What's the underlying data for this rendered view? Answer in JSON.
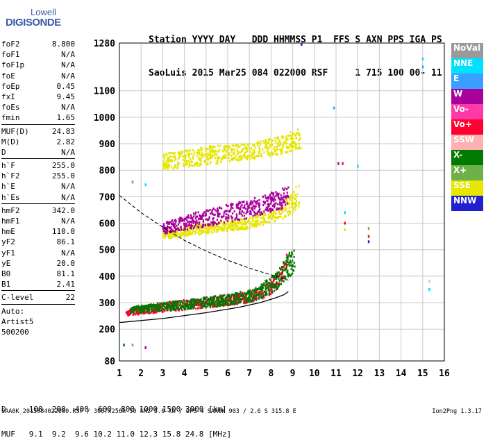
{
  "logo": {
    "line1": "Lowell",
    "line2": "DIGISONDE"
  },
  "header": {
    "row1": "Station YYYY DAY   DDD HHMMSS P1  FFS S AXN PPS IGA PS",
    "row2": "SaoLuis 2015 Mar25 084 022000 RSF     1 715 100 00- 11"
  },
  "params": [
    {
      "k": "foF2",
      "v": "8.800"
    },
    {
      "k": "foF1",
      "v": "N/A"
    },
    {
      "k": "foF1p",
      "v": "N/A"
    },
    {
      "k": "foE",
      "v": "N/A"
    },
    {
      "k": "foEp",
      "v": "0.45"
    },
    {
      "k": "fxI",
      "v": "9.45"
    },
    {
      "k": "foEs",
      "v": "N/A"
    },
    {
      "k": "fmin",
      "v": "1.65"
    },
    {
      "k": "MUF(D)",
      "v": "24.83",
      "sep": true
    },
    {
      "k": "M(D)",
      "v": "2.82"
    },
    {
      "k": "D",
      "v": "N/A"
    },
    {
      "k": "h`F",
      "v": "255.0",
      "sep": true
    },
    {
      "k": "h`F2",
      "v": "255.0"
    },
    {
      "k": "h`E",
      "v": "N/A"
    },
    {
      "k": "h`Es",
      "v": "N/A"
    },
    {
      "k": "hmF2",
      "v": "342.0",
      "sep": true
    },
    {
      "k": "hmF1",
      "v": "N/A"
    },
    {
      "k": "hmE",
      "v": "110.0"
    },
    {
      "k": "yF2",
      "v": "86.1"
    },
    {
      "k": "yF1",
      "v": "N/A"
    },
    {
      "k": "yE",
      "v": "20.0"
    },
    {
      "k": "B0",
      "v": "81.1"
    },
    {
      "k": "B1",
      "v": "2.41"
    },
    {
      "k": "C-level",
      "v": "22",
      "sep": true
    },
    {
      "k": "Auto:",
      "v": "",
      "sep": true
    },
    {
      "k": "Artist5",
      "v": ""
    },
    {
      "k": "500200",
      "v": ""
    }
  ],
  "legend": [
    {
      "label": "NoVal",
      "color": "#9a9a9a"
    },
    {
      "label": "NNE",
      "color": "#00e0ff"
    },
    {
      "label": "E",
      "color": "#3aa0ff"
    },
    {
      "label": "W",
      "color": "#a8009a"
    },
    {
      "label": "Vo-",
      "color": "#ff3aa8"
    },
    {
      "label": "Vo+",
      "color": "#ff0030"
    },
    {
      "label": "SSW",
      "color": "#ffb0b0"
    },
    {
      "label": "X-",
      "color": "#007a00"
    },
    {
      "label": "X+",
      "color": "#6fb04a"
    },
    {
      "label": "SSE",
      "color": "#e6e600"
    },
    {
      "label": "NNW",
      "color": "#2020d0"
    }
  ],
  "bottom": {
    "row1": "D     100  200  400  600  800 1000 1500 3000 [km]",
    "row2": "MUF   9.1  9.2  9.6 10.2 11.0 12.3 15.8 24.8 [MHz]"
  },
  "footer": {
    "left": "SAA0K_2015084022000.RSF / 300fx256h 50 kHz 5.0 km / DPS-4 SAA0K 903 / 2.6 S 315.8 E",
    "right": "Ion2Png 1.3.17"
  },
  "chart_data": {
    "type": "scatter",
    "xlim": [
      1,
      16
    ],
    "ylim": [
      80,
      1280
    ],
    "xticks": [
      "1",
      "2",
      "3",
      "4",
      "5",
      "6",
      "7",
      "8",
      "9",
      "10",
      "11",
      "12",
      "13",
      "14",
      "15",
      "16"
    ],
    "yticks": [
      {
        "v": 80,
        "label": "80"
      },
      {
        "v": 200,
        "label": "200"
      },
      {
        "v": 300,
        "label": "300"
      },
      {
        "v": 400,
        "label": "400"
      },
      {
        "v": 500,
        "label": "500"
      },
      {
        "v": 600,
        "label": "600"
      },
      {
        "v": 700,
        "label": "700"
      },
      {
        "v": 800,
        "label": "800"
      },
      {
        "v": 900,
        "label": "900"
      },
      {
        "v": 1000,
        "label": "1000"
      },
      {
        "v": 1100,
        "label": "1100"
      },
      {
        "v": 1280,
        "label": "1280"
      }
    ],
    "grid": true,
    "traces": [
      {
        "name": "F2 O-trace",
        "color": "#ff0030",
        "xs": [
          1.3,
          3.0,
          5.0,
          7.0,
          7.8,
          8.4,
          8.8
        ],
        "ylo": [
          250,
          265,
          280,
          300,
          320,
          360,
          420
        ],
        "yhi": [
          275,
          300,
          320,
          340,
          370,
          420,
          500
        ]
      },
      {
        "name": "F2 X-trace",
        "color": "#007a00",
        "xs": [
          1.5,
          3.5,
          5.5,
          7.2,
          8.2,
          9.1
        ],
        "ylo": [
          260,
          270,
          285,
          305,
          340,
          420
        ],
        "yhi": [
          285,
          305,
          325,
          350,
          410,
          520
        ]
      },
      {
        "name": "second hop",
        "color": "#e6e600",
        "xs": [
          3.0,
          5.0,
          7.0,
          8.5,
          9.3
        ],
        "ylo": [
          540,
          560,
          580,
          610,
          660
        ],
        "yhi": [
          570,
          600,
          620,
          660,
          760
        ]
      },
      {
        "name": "second hop W",
        "color": "#a8009a",
        "xs": [
          3.0,
          4.5,
          6.0,
          7.5,
          8.8
        ],
        "ylo": [
          560,
          580,
          600,
          630,
          660
        ],
        "yhi": [
          600,
          640,
          670,
          700,
          740
        ]
      },
      {
        "name": "third hop",
        "color": "#e6e600",
        "xs": [
          3.0,
          5.0,
          7.0,
          8.5,
          9.4
        ],
        "ylo": [
          800,
          820,
          840,
          860,
          880
        ],
        "yhi": [
          860,
          890,
          900,
          930,
          960
        ]
      }
    ],
    "profile": [
      {
        "x": 1.0,
        "y": 225
      },
      {
        "x": 3.0,
        "y": 240
      },
      {
        "x": 5.0,
        "y": 262
      },
      {
        "x": 6.5,
        "y": 282
      },
      {
        "x": 7.5,
        "y": 300
      },
      {
        "x": 8.2,
        "y": 318
      },
      {
        "x": 8.6,
        "y": 330
      },
      {
        "x": 8.8,
        "y": 342
      }
    ],
    "dashed": [
      {
        "x": 1.0,
        "y": 705
      },
      {
        "x": 2.0,
        "y": 640
      },
      {
        "x": 3.0,
        "y": 585
      },
      {
        "x": 4.0,
        "y": 535
      },
      {
        "x": 5.0,
        "y": 495
      },
      {
        "x": 6.0,
        "y": 460
      },
      {
        "x": 7.0,
        "y": 430
      },
      {
        "x": 8.0,
        "y": 405
      },
      {
        "x": 8.8,
        "y": 385
      }
    ],
    "extras": [
      {
        "x": 10.9,
        "y": 1035,
        "c": "#3aa0ff"
      },
      {
        "x": 11.1,
        "y": 825,
        "c": "#a8009a"
      },
      {
        "x": 11.3,
        "y": 825,
        "c": "#ff0030"
      },
      {
        "x": 11.4,
        "y": 640,
        "c": "#00e0ff"
      },
      {
        "x": 11.4,
        "y": 600,
        "c": "#ff0030"
      },
      {
        "x": 11.4,
        "y": 575,
        "c": "#e6e600"
      },
      {
        "x": 12.0,
        "y": 815,
        "c": "#00e0ff"
      },
      {
        "x": 12.5,
        "y": 580,
        "c": "#6fb04a"
      },
      {
        "x": 12.5,
        "y": 550,
        "c": "#ff0030"
      },
      {
        "x": 12.5,
        "y": 530,
        "c": "#2020d0"
      },
      {
        "x": 15.0,
        "y": 1220,
        "c": "#00e0ff"
      },
      {
        "x": 15.0,
        "y": 1190,
        "c": "#3aa0ff"
      },
      {
        "x": 15.3,
        "y": 350,
        "c": "#00e0ff"
      },
      {
        "x": 15.3,
        "y": 380,
        "c": "#ffb0b0"
      },
      {
        "x": 9.4,
        "y": 1275,
        "c": "#2020d0"
      },
      {
        "x": 1.2,
        "y": 140,
        "c": "#007a00"
      },
      {
        "x": 1.6,
        "y": 140,
        "c": "#6fb04a"
      },
      {
        "x": 2.2,
        "y": 130,
        "c": "#a8009a"
      },
      {
        "x": 1.6,
        "y": 755,
        "c": "#6fb04a"
      },
      {
        "x": 2.2,
        "y": 745,
        "c": "#00e0ff"
      }
    ]
  }
}
